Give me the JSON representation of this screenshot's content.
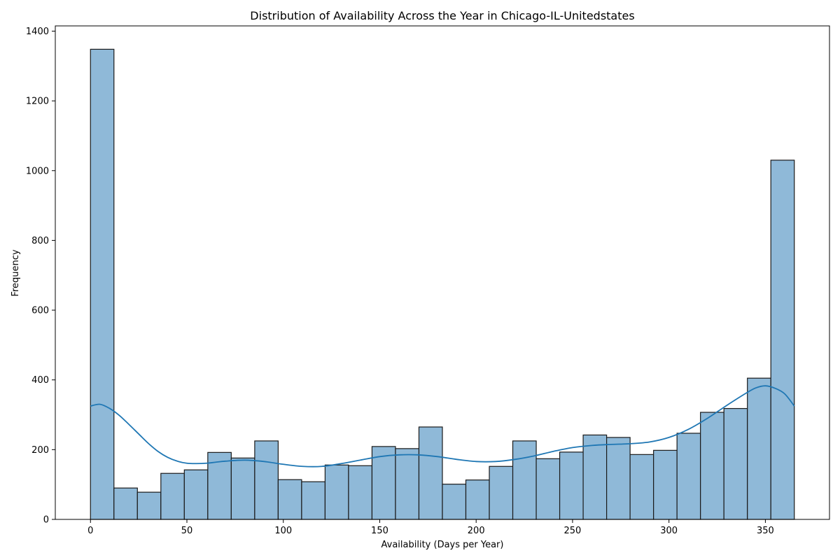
{
  "chart_data": {
    "type": "bar",
    "title": "Distribution of Availability Across the Year in Chicago-IL-Unitedstates",
    "xlabel": "Availability (Days per Year)",
    "ylabel": "Frequency",
    "xlim": [
      -18.25,
      383.25
    ],
    "ylim": [
      0,
      1415
    ],
    "x_ticks": [
      0,
      50,
      100,
      150,
      200,
      250,
      300,
      350
    ],
    "y_ticks": [
      0,
      200,
      400,
      600,
      800,
      1000,
      1200,
      1400
    ],
    "grid": false,
    "bins": {
      "start": 0,
      "width": 12.1667,
      "values": [
        1348,
        90,
        78,
        132,
        142,
        192,
        176,
        225,
        114,
        108,
        156,
        154,
        209,
        203,
        265,
        101,
        113,
        152,
        225,
        174,
        193,
        242,
        235,
        186,
        198,
        247,
        307,
        318,
        405,
        1030
      ]
    },
    "kde": {
      "name": "density",
      "x": [
        0,
        5,
        10,
        15,
        20,
        25,
        30,
        35,
        40,
        45,
        50,
        55,
        60,
        65,
        70,
        80,
        90,
        100,
        110,
        120,
        130,
        140,
        150,
        160,
        170,
        180,
        190,
        200,
        210,
        220,
        230,
        240,
        250,
        260,
        270,
        280,
        290,
        300,
        310,
        320,
        330,
        340,
        345,
        350,
        355,
        360,
        365
      ],
      "y": [
        325,
        330,
        318,
        298,
        272,
        245,
        218,
        195,
        178,
        167,
        161,
        160,
        161,
        164,
        167,
        170,
        166,
        158,
        152,
        152,
        160,
        170,
        180,
        185,
        185,
        180,
        172,
        166,
        166,
        172,
        182,
        195,
        206,
        212,
        215,
        217,
        222,
        235,
        258,
        290,
        327,
        362,
        377,
        383,
        376,
        360,
        325
      ]
    }
  }
}
